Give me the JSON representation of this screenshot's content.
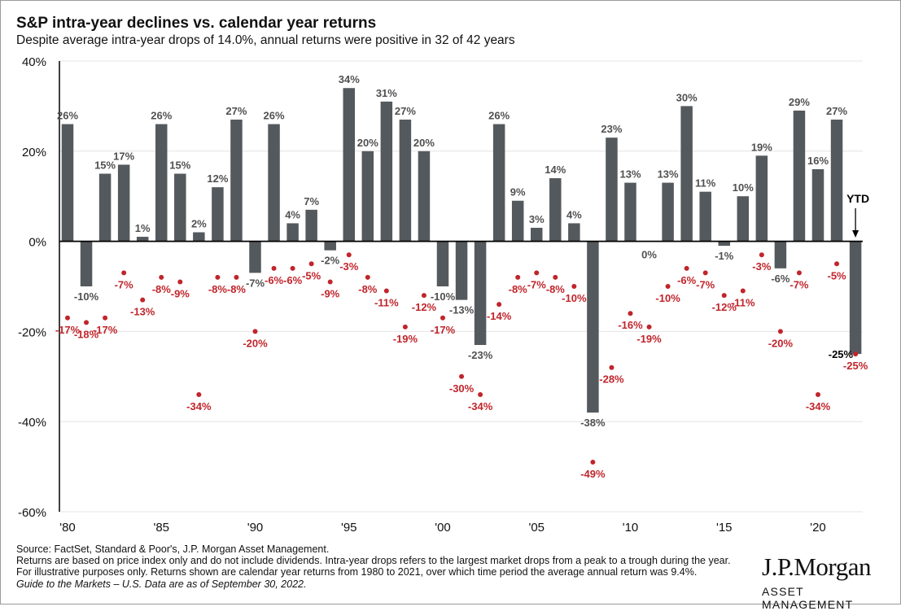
{
  "header": {
    "title": "S&P intra-year declines vs. calendar year returns",
    "subtitle": "Despite average intra-year drops of 14.0%, annual returns were positive in 32 of 42 years"
  },
  "footer": {
    "lines": [
      "Source: FactSet, Standard & Poor's, J.P. Morgan Asset Management.",
      "Returns are based on price index only and do not include dividends. Intra-year drops refers to the largest market drops from a peak to a trough during the year. For illustrative purposes only. Returns shown are calendar year returns from 1980 to 2021, over which time period the average annual return was 9.4%.",
      "Guide to the Markets – U.S. Data are as of September 30, 2022."
    ]
  },
  "logo": {
    "name": "J.P.Morgan",
    "sub": "ASSET MANAGEMENT"
  },
  "colors": {
    "bar": "#54595d",
    "dot": "#c0252b",
    "drop_label": "#c0252b",
    "axis": "#000000",
    "grid": "#e4e4e4"
  },
  "chart_data": {
    "type": "bar",
    "x": [
      1980,
      1981,
      1982,
      1983,
      1984,
      1985,
      1986,
      1987,
      1988,
      1989,
      1990,
      1991,
      1992,
      1993,
      1994,
      1995,
      1996,
      1997,
      1998,
      1999,
      2000,
      2001,
      2002,
      2003,
      2004,
      2005,
      2006,
      2007,
      2008,
      2009,
      2010,
      2011,
      2012,
      2013,
      2014,
      2015,
      2016,
      2017,
      2018,
      2019,
      2020,
      2021,
      2022
    ],
    "series": [
      {
        "kind": "bar",
        "values": [
          26,
          -10,
          15,
          17,
          1,
          26,
          15,
          2,
          12,
          27,
          -7,
          26,
          4,
          7,
          -2,
          34,
          20,
          31,
          27,
          20,
          -10,
          -13,
          -23,
          26,
          9,
          3,
          14,
          4,
          -38,
          23,
          13,
          0,
          13,
          30,
          11,
          -1,
          10,
          19,
          -6,
          29,
          16,
          27,
          -25
        ],
        "labels": [
          "26%",
          "-10%",
          "15%",
          "17%",
          "1%",
          "26%",
          "15%",
          "2%",
          "12%",
          "27%",
          "-7%",
          "26%",
          "4%",
          "7%",
          "-2%",
          "34%",
          "20%",
          "31%",
          "27%",
          "20%",
          "-10%",
          "-13%",
          "-23%",
          "26%",
          "9%",
          "3%",
          "14%",
          "4%",
          "-38%",
          "23%",
          "13%",
          "0%",
          "13%",
          "30%",
          "11%",
          "-1%",
          "10%",
          "19%",
          "-6%",
          "29%",
          "16%",
          "27%",
          "-25%"
        ]
      },
      {
        "kind": "scatter",
        "values": [
          -17,
          -18,
          -17,
          -7,
          -13,
          -8,
          -9,
          -34,
          -8,
          -8,
          -20,
          -6,
          -6,
          -5,
          -9,
          -3,
          -8,
          -11,
          -19,
          -12,
          -17,
          -30,
          -34,
          -14,
          -8,
          -7,
          -8,
          -10,
          -49,
          -28,
          -16,
          -19,
          -10,
          -6,
          -7,
          -12,
          -11,
          -3,
          -20,
          -7,
          -34,
          -5,
          -25
        ],
        "labels": [
          "-17%",
          "-18%",
          "-17%",
          "-7%",
          "-13%",
          "-8%",
          "-9%",
          "-34%",
          "-8%",
          "-8%",
          "-20%",
          "-6%",
          "-6%",
          "-5%",
          "-9%",
          "-3%",
          "-8%",
          "-11%",
          "-19%",
          "-12%",
          "-17%",
          "-30%",
          "-34%",
          "-14%",
          "-8%",
          "-7%",
          "-8%",
          "-10%",
          "-49%",
          "-28%",
          "-16%",
          "-19%",
          "-10%",
          "-6%",
          "-7%",
          "-12%",
          "-11%",
          "-3%",
          "-20%",
          "-7%",
          "-34%",
          "-5%",
          "-25%"
        ]
      }
    ],
    "ylim": [
      -60,
      40
    ],
    "yticks": [
      40,
      20,
      0,
      -20,
      -40,
      -60
    ],
    "ytick_labels": [
      "40%",
      "20%",
      "0%",
      "-20%",
      "-40%",
      "-60%"
    ],
    "xtick_years": [
      1980,
      1985,
      1990,
      1995,
      2000,
      2005,
      2010,
      2015,
      2020
    ],
    "xtick_labels": [
      "'80",
      "'85",
      "'90",
      "'95",
      "'00",
      "'05",
      "'10",
      "'15",
      "'20"
    ],
    "annotation": {
      "text": "YTD",
      "year": 2022
    },
    "grid": true
  }
}
